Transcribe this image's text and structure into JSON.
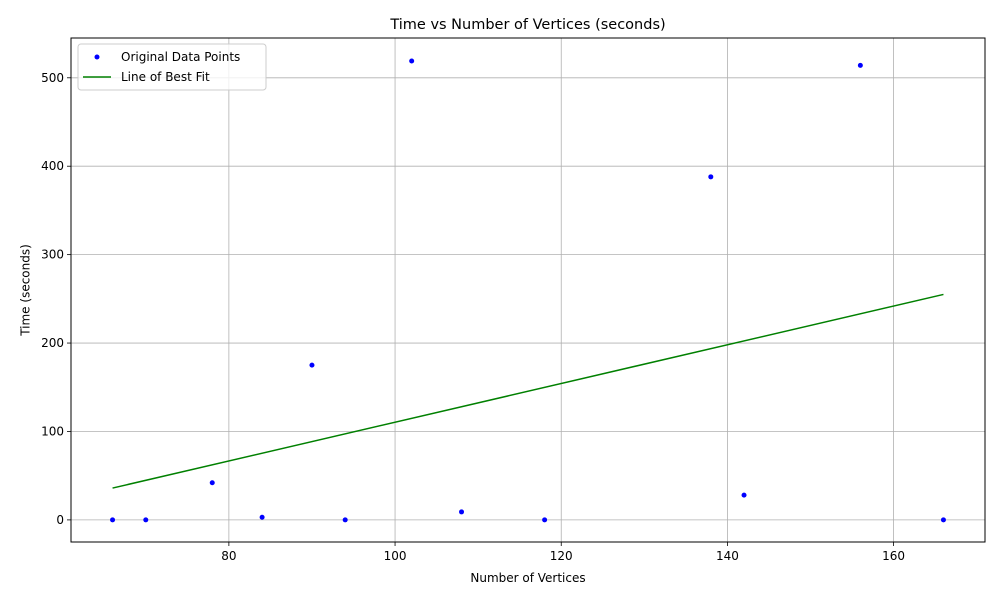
{
  "chart_data": {
    "type": "scatter",
    "title": "Time vs Number of Vertices (seconds)",
    "xlabel": "Number of Vertices",
    "ylabel": "Time (seconds)",
    "xlim": [
      61,
      171
    ],
    "ylim": [
      -25,
      545
    ],
    "xticks": [
      80,
      100,
      120,
      140,
      160
    ],
    "yticks": [
      0,
      100,
      200,
      300,
      400,
      500
    ],
    "grid": true,
    "legend_position": "top-left",
    "series": [
      {
        "name": "Original Data Points",
        "kind": "scatter",
        "color": "#0000ff",
        "points": [
          {
            "x": 66,
            "y": 0
          },
          {
            "x": 70,
            "y": 0
          },
          {
            "x": 78,
            "y": 42
          },
          {
            "x": 84,
            "y": 3
          },
          {
            "x": 90,
            "y": 175
          },
          {
            "x": 94,
            "y": 0
          },
          {
            "x": 102,
            "y": 519
          },
          {
            "x": 108,
            "y": 9
          },
          {
            "x": 118,
            "y": 0
          },
          {
            "x": 138,
            "y": 388
          },
          {
            "x": 142,
            "y": 28
          },
          {
            "x": 156,
            "y": 514
          },
          {
            "x": 166,
            "y": 0
          }
        ]
      },
      {
        "name": "Line of Best Fit",
        "kind": "line",
        "color": "#008000",
        "points": [
          {
            "x": 66,
            "y": 36
          },
          {
            "x": 166,
            "y": 255
          }
        ]
      }
    ]
  }
}
